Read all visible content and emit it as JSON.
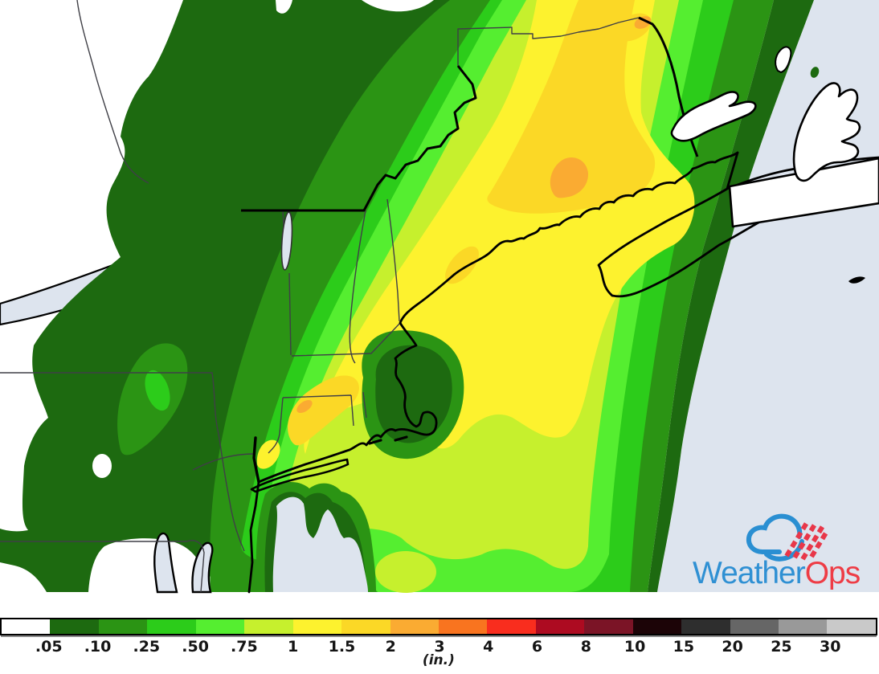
{
  "map": {
    "description": "Forecast precipitation accumulation contour map of the northeastern United States, New England and the Canadian Maritimes",
    "land_color": "#ffffff",
    "ocean_color": "#dde4ee",
    "border_thin_color": "#3f3f46",
    "coast_color": "#000000"
  },
  "legend": {
    "unit_label": "(in.)",
    "tick_labels": [
      ".05",
      ".10",
      ".25",
      ".50",
      ".75",
      "1",
      "1.5",
      "2",
      "3",
      "4",
      "6",
      "8",
      "10",
      "15",
      "20",
      "25",
      "30"
    ],
    "segment_colors": [
      "#ffffff",
      "#1d6a10",
      "#2b9414",
      "#2ccc1a",
      "#55ee30",
      "#c6f02d",
      "#fdf22e",
      "#fbd826",
      "#faab32",
      "#f9741f",
      "#f92d1e",
      "#ad0b21",
      "#7b1426",
      "#1c0407",
      "#2e2e2e",
      "#666666",
      "#999999",
      "#c9c9c9"
    ],
    "scale_ranges": [
      "<0.05",
      "0.05-0.10",
      "0.10-0.25",
      "0.25-0.50",
      "0.50-0.75",
      "0.75-1",
      "1-1.5",
      "1.5-2",
      "2-3",
      "3-4",
      "4-6",
      "6-8",
      "8-10",
      "10-15",
      "15-20",
      "20-25",
      "25-30",
      ">30"
    ]
  },
  "logo": {
    "brand_part1": "Weather",
    "brand_part2": "Ops",
    "part1_color": "#2f90d3",
    "part2_color": "#ee3c45",
    "cloud_color": "#2a8fd2",
    "hatch_color": "#e83749"
  }
}
